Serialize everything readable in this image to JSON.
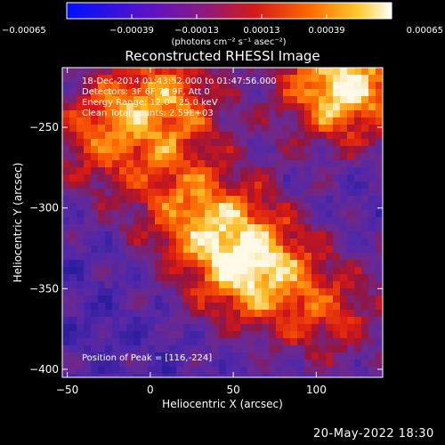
{
  "chart_data": {
    "type": "heatmap",
    "title": "Reconstructed RHESSI Image",
    "xlabel": "Heliocentric X (arcsec)",
    "ylabel": "Heliocentric Y (arcsec)",
    "xlim": [
      -53,
      140
    ],
    "ylim": [
      -405,
      -213
    ],
    "xticks": [
      -50,
      0,
      50,
      100
    ],
    "xtick_labels": [
      "−50",
      "0",
      "50",
      "100"
    ],
    "yticks": [
      -250,
      -300,
      -350,
      -400
    ],
    "ytick_labels": [
      "−250",
      "−300",
      "−350",
      "−400"
    ],
    "colorbar": {
      "range": [
        -0.00065,
        0.00065
      ],
      "ticks": [
        -0.00065,
        -0.00039,
        -0.00013,
        0.00013,
        0.00039,
        0.00065
      ],
      "tick_labels": [
        "−0.00065",
        "−0.00039",
        "−0.00013",
        "0.00013",
        "0.00039",
        "0.00065"
      ],
      "unit_label": "(photons cm⁻² s⁻¹ asec⁻²)"
    },
    "sources": [
      {
        "x": 116,
        "y": -224,
        "rel_intensity": 1.0
      },
      {
        "x": 60,
        "y": -335,
        "rel_intensity": 0.95
      },
      {
        "x": 10,
        "y": -232,
        "rel_intensity": 0.65
      },
      {
        "x": -30,
        "y": -255,
        "rel_intensity": 0.55
      },
      {
        "x": 25,
        "y": -300,
        "rel_intensity": 0.6
      },
      {
        "x": 110,
        "y": -365,
        "rel_intensity": 0.45
      }
    ],
    "peak": [
      116,
      -224
    ]
  },
  "overlay": {
    "line1": "18-Dec-2014 01:43:52.000 to 01:47:56.000",
    "line2": "Detectors: 3F 6F 7F 9F, Att 0",
    "line3": "Energy Range: 12.0 - 25.0 keV",
    "line4": "Clean      Total counts: 2.59E+03",
    "peak_text": "Position of Peak = [116,-224]"
  },
  "footer": {
    "date": "20-May-2022 18:30"
  }
}
